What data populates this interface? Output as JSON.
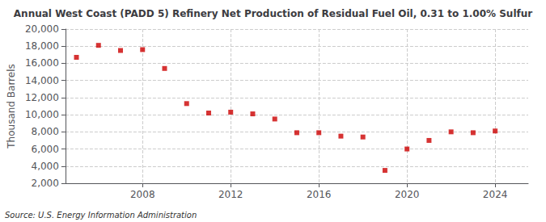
{
  "chart_data": {
    "type": "scatter",
    "title": "Annual West Coast (PADD 5) Refinery Net Production of Residual Fuel Oil, 0.31 to 1.00% Sulfur",
    "ylabel": "Thousand Barrels",
    "annotations": [
      "Source: U.S. Energy Information Administration"
    ],
    "x": [
      2005,
      2006,
      2007,
      2008,
      2009,
      2010,
      2011,
      2012,
      2013,
      2014,
      2015,
      2016,
      2017,
      2018,
      2019,
      2020,
      2021,
      2022,
      2023,
      2024
    ],
    "values": [
      16700,
      18100,
      17500,
      17600,
      15400,
      11300,
      10200,
      10300,
      10100,
      9500,
      7900,
      7900,
      7500,
      7400,
      3500,
      6000,
      7000,
      8000,
      7900,
      8100
    ],
    "color": "#cc0000",
    "marker": "square",
    "xlim": [
      2004.5,
      2025.5
    ],
    "xticks": [
      2008,
      2012,
      2016,
      2020,
      2024
    ],
    "ylim": [
      2000,
      20000
    ],
    "yticks": [
      {
        "value": 2000,
        "label": "2,000"
      },
      {
        "value": 4000,
        "label": "4,000"
      },
      {
        "value": 6000,
        "label": "6,000"
      },
      {
        "value": 8000,
        "label": "8,000"
      },
      {
        "value": 10000,
        "label": "10,000"
      },
      {
        "value": 12000,
        "label": "12,000"
      },
      {
        "value": 14000,
        "label": "14,000"
      },
      {
        "value": 16000,
        "label": "16,000"
      },
      {
        "value": 18000,
        "label": "18,000"
      },
      {
        "value": 20000,
        "label": "20,000"
      }
    ],
    "grid": true
  }
}
